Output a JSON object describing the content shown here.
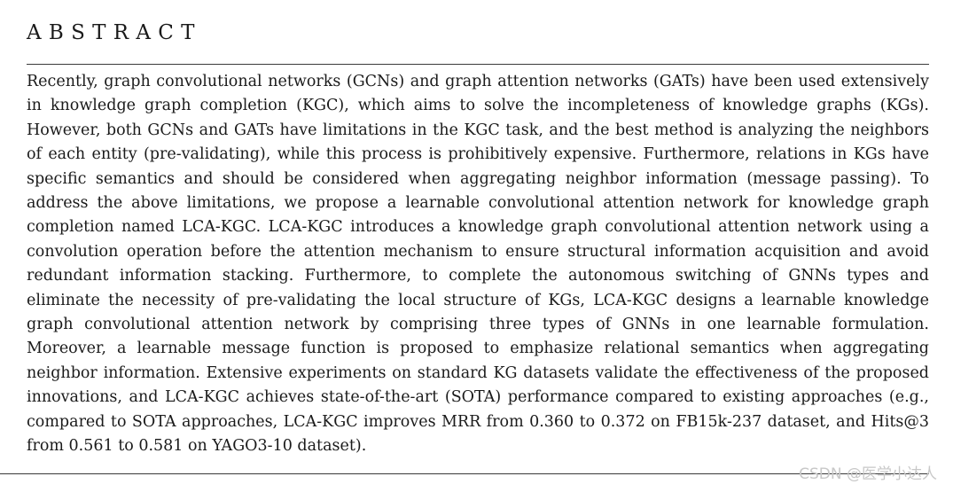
{
  "section": {
    "heading": "ABSTRACT",
    "body": "Recently, graph convolutional networks (GCNs) and graph attention networks (GATs) have been used exten­sively in knowledge graph completion (KGC), which aims to solve the incompleteness of knowledge graphs (KGs). However, both GCNs and GATs have limitations in the KGC task, and the best method is analyzing the neighbors of each entity (pre-validating), while this process is prohibitively expensive. Furthermore, relations in KGs have specific semantics and should be considered when aggregating neighbor information (message passing). To address the above limitations, we propose a learnable convolutional attention network for knowledge graph completion named LCA-KGC. LCA-KGC introduces a knowledge graph convolutional attention network using a convolution operation before the attention mechanism to ensure structural information acquisition and avoid redundant information stacking. Furthermore, to complete the autonomous switching of GNNs types and eliminate the necessity of pre-validating the local structure of KGs, LCA-KGC designs a learnable knowledge graph convolutional attention network by comprising three types of GNNs in one learnable formulation. Moreover, a learnable message function is proposed to emphasize relational semantics when aggregating neighbor information. Extensive experiments on standard KG datasets validate the effectiveness of the proposed innovations, and LCA-KGC achieves state-of-the-art (SOTA) performance compared to existing approaches (e.g., compared to SOTA approaches, LCA-KGC improves MRR from 0.360 to 0.372 on FB15k-237 dataset, and Hits@3 from 0.561 to 0.581 on YAGO3-10 dataset)."
  },
  "watermark": {
    "text": "CSDN @医学小达人"
  }
}
